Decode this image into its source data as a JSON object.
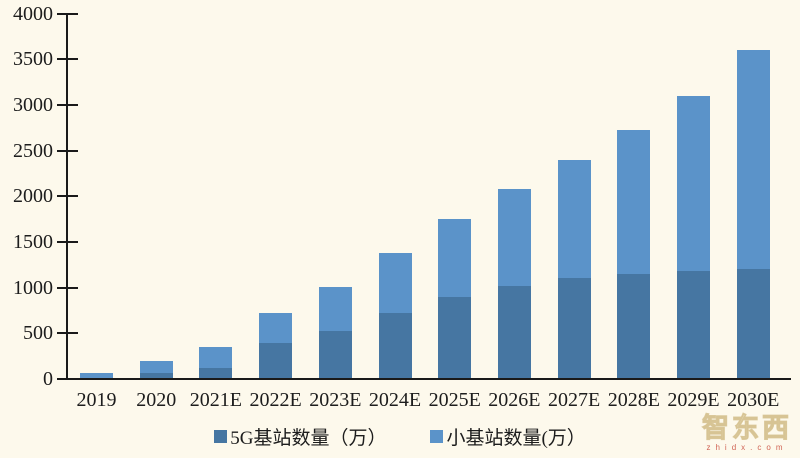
{
  "chart_data": {
    "type": "bar",
    "stacked": true,
    "title": "",
    "xlabel": "",
    "ylabel": "",
    "categories": [
      "2019",
      "2020",
      "2021E",
      "2022E",
      "2023E",
      "2024E",
      "2025E",
      "2026E",
      "2027E",
      "2028E",
      "2029E",
      "2030E"
    ],
    "series": [
      {
        "name": "5G基站数量（万）",
        "color": "#4676A2",
        "values": [
          15,
          70,
          120,
          390,
          530,
          720,
          900,
          1020,
          1100,
          1150,
          1180,
          1200
        ]
      },
      {
        "name": "小基站数量(万）",
        "color": "#5B93C9",
        "values": [
          50,
          130,
          230,
          330,
          480,
          660,
          850,
          1060,
          1300,
          1580,
          1920,
          2400
        ]
      }
    ],
    "totals": [
      65,
      200,
      350,
      720,
      1010,
      1380,
      1750,
      2080,
      2400,
      2730,
      3100,
      3600
    ],
    "ylim": [
      0,
      4000
    ],
    "ytick_step": 500,
    "yticks": [
      0,
      500,
      1000,
      1500,
      2000,
      2500,
      3000,
      3500,
      4000
    ],
    "grid": false,
    "legend_position": "bottom"
  },
  "watermark": {
    "logo_text": "智东西",
    "url_text": "zhidx.com"
  },
  "colors": {
    "background": "#FDF9EC",
    "axis": "#1a1a1a",
    "text": "#1d1d1d",
    "series_dark": "#4676A2",
    "series_light": "#5B93C9",
    "watermark_red": "#c94b3b",
    "watermark_tan": "#cbb276"
  }
}
